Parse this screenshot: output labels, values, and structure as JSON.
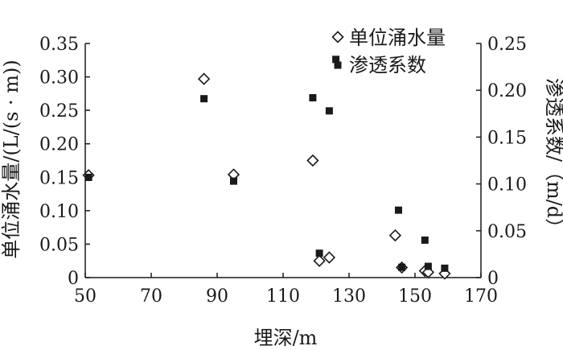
{
  "chart_data": {
    "type": "scatter",
    "title": "",
    "xlabel": "埋深/m",
    "ylabel_left": "单位涌水量/(L/(s · m))",
    "ylabel_right": "渗透系数/（m/d）",
    "xlim": [
      50,
      170
    ],
    "ylim_left": [
      0,
      0.35
    ],
    "ylim_right": [
      0,
      0.25
    ],
    "x_ticks": [
      "50",
      "70",
      "90",
      "110",
      "130",
      "150",
      "170"
    ],
    "y_left_ticks": [
      "0",
      "0.05",
      "0.10",
      "0.15",
      "0.20",
      "0.25",
      "0.30",
      "0.35"
    ],
    "y_right_ticks": [
      "0",
      "0.05",
      "0.10",
      "0.15",
      "0.20",
      "0.25"
    ],
    "legend_position": "top-right",
    "grid": false,
    "series": [
      {
        "name": "单位涌水量",
        "axis": "left",
        "marker": "open-diamond",
        "x": [
          51,
          86,
          95,
          119,
          121,
          124,
          144,
          146,
          153,
          154,
          159
        ],
        "y": [
          0.153,
          0.297,
          0.154,
          0.175,
          0.025,
          0.03,
          0.063,
          0.015,
          0.01,
          0.008,
          0.006
        ]
      },
      {
        "name": "渗透系数",
        "axis": "right",
        "marker": "filled-square",
        "x": [
          51,
          86,
          95,
          119,
          121,
          124,
          126,
          145,
          146,
          153,
          154,
          159
        ],
        "y": [
          0.107,
          0.191,
          0.103,
          0.192,
          0.026,
          0.178,
          0.233,
          0.072,
          0.011,
          0.04,
          0.012,
          0.01
        ]
      }
    ],
    "colors": {
      "axis": "#1a1a1a",
      "marker": "#1a1a1a"
    }
  }
}
